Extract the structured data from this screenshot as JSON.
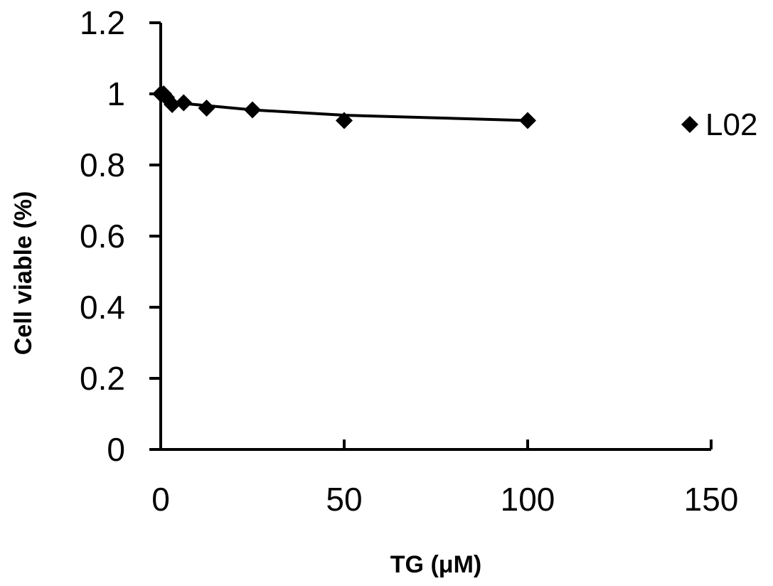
{
  "chart_data": {
    "type": "scatter",
    "title": "",
    "xlabel": "TG (μM)",
    "ylabel": "Cell viable (%)",
    "xlim": [
      0,
      150
    ],
    "ylim": [
      0,
      1.2
    ],
    "x_ticks": [
      0,
      50,
      100,
      150
    ],
    "y_ticks": [
      0,
      0.2,
      0.4,
      0.6,
      0.8,
      1,
      1.2
    ],
    "x_tick_labels": [
      "0",
      "50",
      "100",
      "150"
    ],
    "y_tick_labels": [
      "0",
      "0.2",
      "0.4",
      "0.6",
      "0.8",
      "1",
      "1.2"
    ],
    "grid": false,
    "legend_position": "right",
    "series": [
      {
        "name": "L02",
        "marker": "diamond",
        "color": "#000000",
        "x": [
          0,
          0.78,
          1.56,
          3.125,
          6.25,
          12.5,
          25,
          50,
          100
        ],
        "y": [
          1.0,
          1.0,
          0.99,
          0.97,
          0.975,
          0.96,
          0.955,
          0.925,
          0.925
        ]
      }
    ],
    "trendline": {
      "color": "#000000",
      "x": [
        0,
        1.56,
        3.125,
        6.25,
        12.5,
        25,
        50,
        100
      ],
      "y": [
        1.0,
        0.985,
        0.975,
        0.973,
        0.967,
        0.955,
        0.94,
        0.925
      ]
    }
  }
}
